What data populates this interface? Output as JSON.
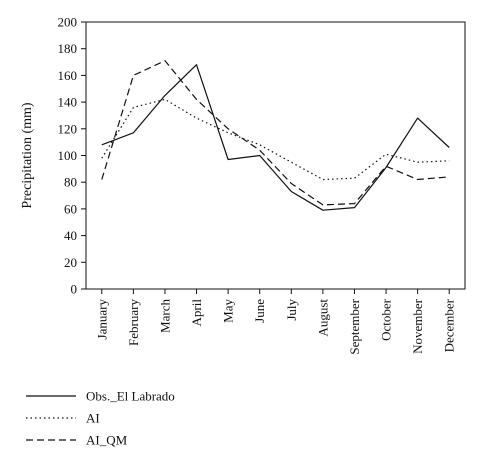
{
  "chart_data": {
    "type": "line",
    "categories": [
      "January",
      "February",
      "March",
      "April",
      "May",
      "June",
      "July",
      "August",
      "September",
      "October",
      "November",
      "December"
    ],
    "ylabel": "Precipitation (mm)",
    "xlabel": "",
    "ylim": [
      0,
      200
    ],
    "yticks": [
      0,
      20,
      40,
      60,
      80,
      100,
      120,
      140,
      160,
      180,
      200
    ],
    "grid": false,
    "legend_position": "bottom-left",
    "series": [
      {
        "name": "Obs._El Labrado",
        "style": "solid",
        "color": "#111111",
        "values": [
          108,
          117,
          145,
          168,
          97,
          100,
          73,
          59,
          61,
          91,
          128,
          106
        ]
      },
      {
        "name": "AI",
        "style": "dotted",
        "color": "#111111",
        "values": [
          98,
          136,
          142,
          128,
          117,
          108,
          95,
          82,
          83,
          101,
          95,
          96
        ]
      },
      {
        "name": "AI_QM",
        "style": "dashed",
        "color": "#111111",
        "values": [
          82,
          160,
          171,
          142,
          120,
          104,
          79,
          63,
          64,
          92,
          82,
          84
        ]
      }
    ]
  }
}
